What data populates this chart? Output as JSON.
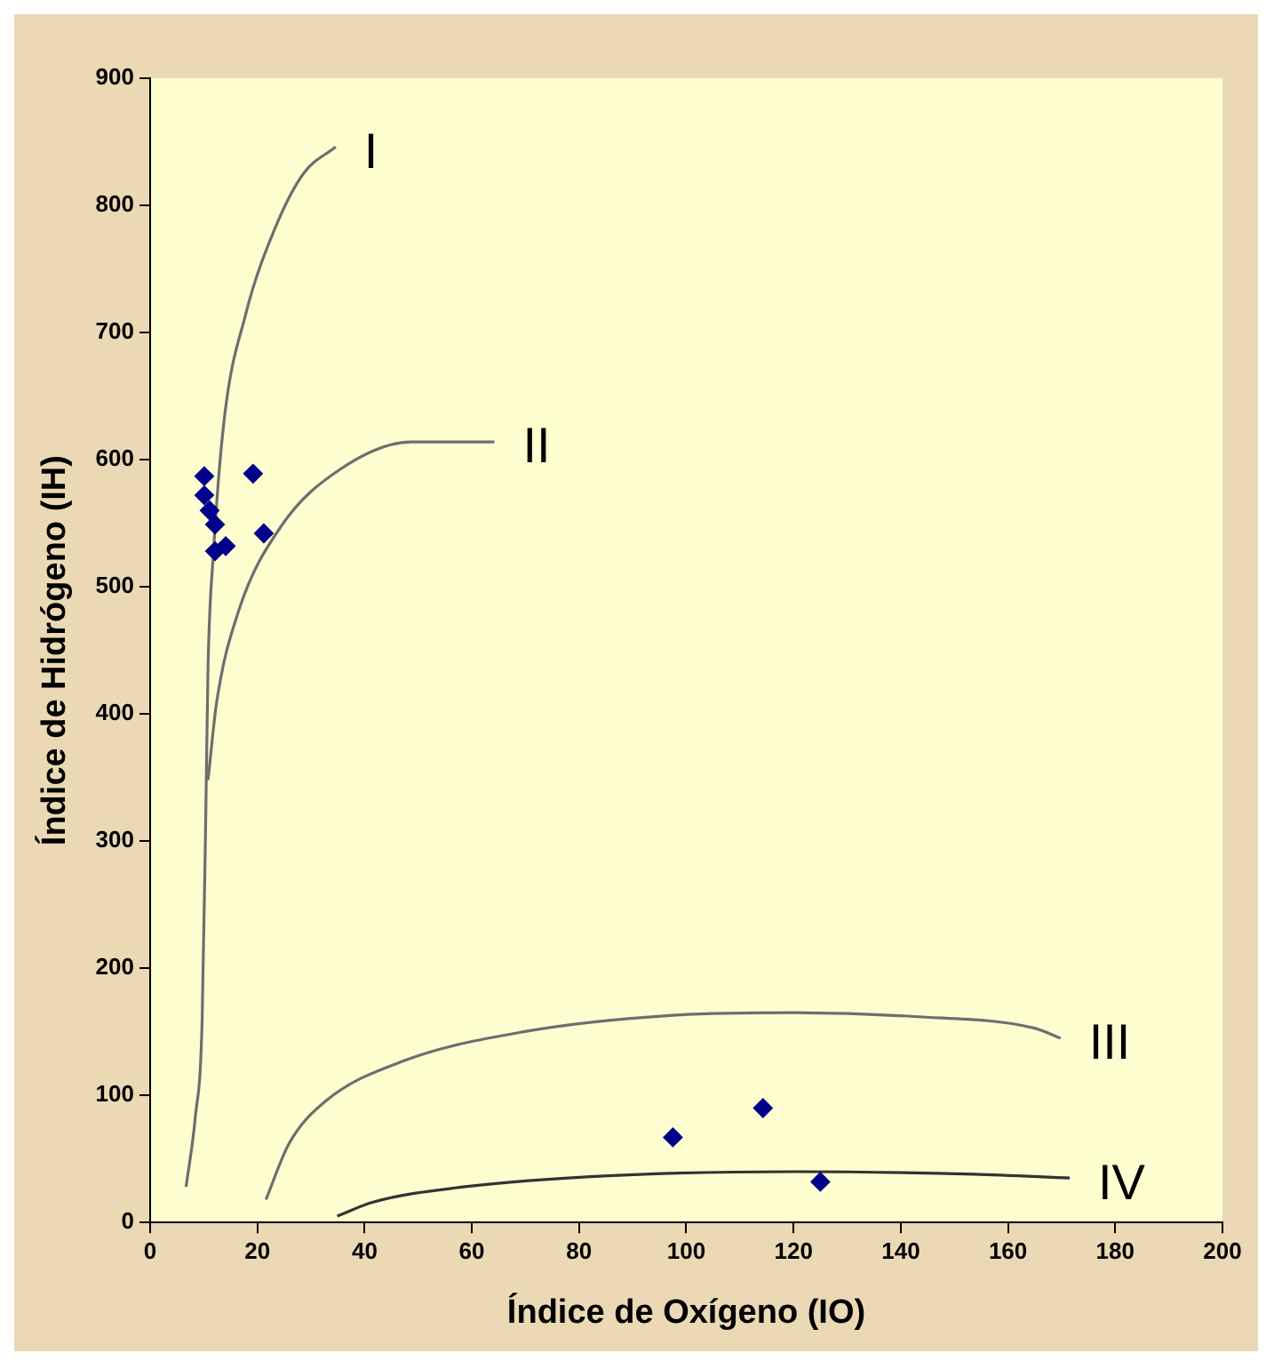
{
  "chart_data": {
    "type": "scatter",
    "xlabel": "Índice de Oxígeno (IO)",
    "ylabel": "Índice de Hidrógeno (IH)",
    "xlim": [
      0,
      200
    ],
    "xticks": [
      0,
      20,
      40,
      60,
      80,
      100,
      120,
      140,
      160,
      180,
      200
    ],
    "ylim": [
      0,
      900
    ],
    "yticks": [
      0,
      100,
      200,
      300,
      400,
      500,
      600,
      700,
      800,
      900
    ],
    "grid": false,
    "legend": false,
    "marker": "diamond",
    "series": [
      {
        "color": "#00008b",
        "x": [
          10.1,
          10.1,
          11.1,
          12.1,
          12.1,
          14.1,
          19.2,
          21.2,
          97.5,
          114.3,
          125
        ],
        "values": [
          587,
          572,
          560,
          549,
          528,
          532,
          589,
          542,
          67,
          90,
          32
        ]
      },
      {
        "name": "I",
        "type": "line",
        "marker": "none",
        "color": "#6e6e6e",
        "x": [
          6.7,
          8.4,
          9.7,
          10.4,
          10.8,
          11.8,
          13.8,
          17.8,
          23.2,
          28.6,
          34.6
        ],
        "values": [
          28,
          82,
          159,
          326,
          437,
          526,
          631,
          714,
          781,
          825,
          846
        ]
      },
      {
        "name": "II",
        "type": "line",
        "marker": "none",
        "color": "#6e6e6e",
        "x": [
          10.8,
          12.4,
          16.5,
          24.5,
          35.3,
          48.7,
          64.2
        ],
        "values": [
          348,
          409,
          481,
          548,
          592,
          614,
          614
        ]
      },
      {
        "name": "III",
        "type": "line",
        "marker": "none",
        "color": "#6e6e6e",
        "x": [
          21.6,
          25.9,
          32.6,
          47.2,
          69.6,
          97.5,
          120,
          142.4,
          164.8,
          169.8
        ],
        "values": [
          18,
          62,
          95,
          127,
          150,
          163,
          165,
          162,
          153,
          145
        ]
      },
      {
        "name": "IV",
        "type": "line",
        "marker": "none",
        "color": "#333333",
        "x": [
          34.9,
          41.6,
          58.4,
          86.4,
          120,
          153.6,
          171.5
        ],
        "values": [
          5,
          16,
          28,
          37,
          40,
          38,
          35
        ]
      }
    ]
  }
}
